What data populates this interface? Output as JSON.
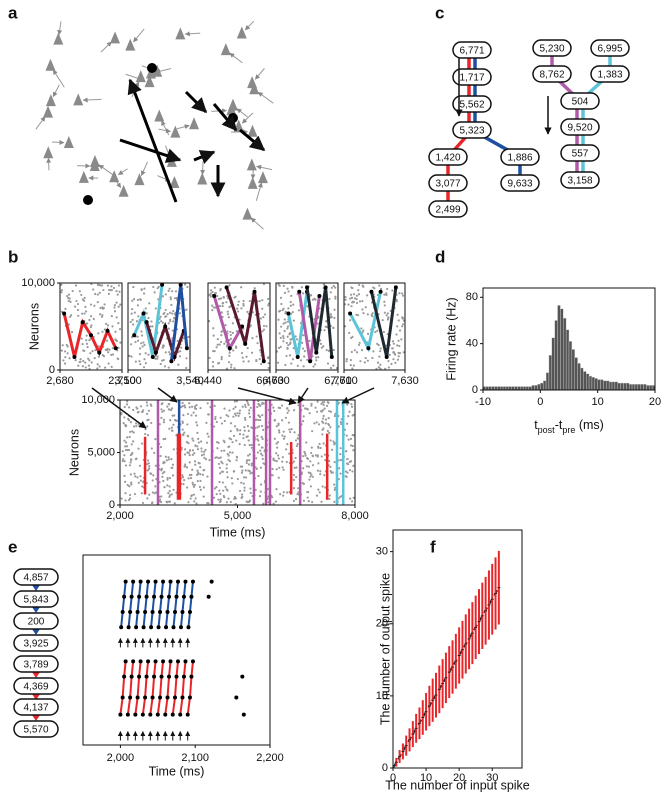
{
  "panel_labels": [
    "a",
    "b",
    "c",
    "d",
    "e",
    "f"
  ],
  "c_chains": {
    "nodes": [
      "6,771",
      "1,717",
      "5,562",
      "5,323",
      "1,420",
      "3,077",
      "2,499",
      "1,886",
      "9,633",
      "5,230",
      "6,995",
      "8,762",
      "1,383",
      "504",
      "9,520",
      "557",
      "3,158"
    ]
  },
  "e_chains": {
    "nodes": [
      "4,857",
      "5,843",
      "200",
      "3,925",
      "3,789",
      "4,369",
      "4,137",
      "5,570"
    ]
  },
  "chart_data": [
    {
      "type": "raster",
      "ylabel": "Neurons",
      "xlim": [
        2680,
        2710
      ],
      "xticks": [
        {
          "value": 2680,
          "label": "2,680"
        },
        {
          "value": 2710,
          "label": "2,710"
        }
      ],
      "ylim": [
        0,
        10000
      ],
      "yticks": [
        {
          "value": 10000,
          "label": "10,000"
        },
        0
      ],
      "series": [
        {
          "color": "#e8262a",
          "x": [
            2682,
            2687,
            2691,
            2695,
            2699,
            2703,
            2707
          ],
          "y": [
            6500,
            1500,
            5500,
            4000,
            2000,
            4500,
            2500
          ]
        }
      ]
    },
    {
      "type": "raster",
      "xlim": [
        3500,
        3540
      ],
      "xticks": [
        {
          "value": 3500,
          "label": "3,500"
        },
        {
          "value": 3540,
          "label": "3,540"
        }
      ],
      "ylim": [
        0,
        10000
      ],
      "series": [
        {
          "color": "#5cc4d8",
          "x": [
            3504,
            3510,
            3516,
            3522
          ],
          "y": [
            4000,
            6500,
            1500,
            9800
          ]
        },
        {
          "color": "#5a1a2e",
          "x": [
            3512,
            3518,
            3524,
            3530,
            3536
          ],
          "y": [
            5500,
            2000,
            5000,
            1500,
            4500
          ]
        },
        {
          "color": "#1f4fa0",
          "x": [
            3528,
            3534,
            3538
          ],
          "y": [
            1000,
            9800,
            2500
          ]
        }
      ]
    },
    {
      "type": "raster",
      "xlim": [
        6440,
        6460
      ],
      "xticks": [
        {
          "value": 6440,
          "label": "6,440"
        },
        {
          "value": 6460,
          "label": "6,460"
        }
      ],
      "ylim": [
        0,
        10000
      ],
      "series": [
        {
          "color": "#b05aa8",
          "x": [
            6442,
            6447,
            6451
          ],
          "y": [
            8500,
            2500,
            5000
          ]
        },
        {
          "color": "#5a1a2e",
          "x": [
            6446,
            6452,
            6455,
            6458
          ],
          "y": [
            9500,
            3000,
            9000,
            1000
          ]
        }
      ]
    },
    {
      "type": "raster",
      "xlim": [
        6730,
        6770
      ],
      "xticks": [
        {
          "value": 6730,
          "label": "6,730"
        },
        {
          "value": 6770,
          "label": "6,770"
        }
      ],
      "ylim": [
        0,
        10000
      ],
      "series": [
        {
          "color": "#5cc4d8",
          "x": [
            6738,
            6744,
            6750
          ],
          "y": [
            6500,
            1500,
            9000
          ]
        },
        {
          "color": "#b05aa8",
          "x": [
            6745,
            6752,
            6758
          ],
          "y": [
            9000,
            1000,
            8500
          ]
        },
        {
          "color": "#1e2a30",
          "x": [
            6750,
            6756,
            6762,
            6766
          ],
          "y": [
            9500,
            2000,
            9500,
            1500
          ]
        }
      ]
    },
    {
      "type": "raster",
      "xlim": [
        7610,
        7630
      ],
      "xticks": [
        {
          "value": 7610,
          "label": "7,610"
        },
        {
          "value": 7630,
          "label": "7,630"
        }
      ],
      "ylim": [
        0,
        10000
      ],
      "series": [
        {
          "color": "#5cc4d8",
          "x": [
            7612,
            7618,
            7622
          ],
          "y": [
            6500,
            2500,
            9000
          ]
        },
        {
          "color": "#1e2a30",
          "x": [
            7619,
            7624,
            7627
          ],
          "y": [
            9000,
            1500,
            9500
          ]
        }
      ]
    },
    {
      "type": "raster",
      "xlabel": "Time (ms)",
      "ylabel": "Neurons",
      "xlim": [
        2000,
        8000
      ],
      "xticks": [
        {
          "value": 2000,
          "label": "2,000"
        },
        {
          "value": 5000,
          "label": "5,000"
        },
        {
          "value": 8000,
          "label": "8,000"
        }
      ],
      "ylim": [
        0,
        10000
      ],
      "yticks": [
        0,
        {
          "value": 5000,
          "label": "5,000"
        },
        {
          "value": 10000,
          "label": "10,000"
        }
      ],
      "series": [
        {
          "color": "#e8262a",
          "x": [
            2640,
            2640
          ],
          "y": [
            1000,
            6500
          ]
        },
        {
          "color": "#b05aa8",
          "x": [
            2970,
            2970
          ],
          "y": [
            0,
            10000
          ]
        },
        {
          "color": "#e8262a",
          "x": [
            3480,
            3480
          ],
          "y": [
            500,
            6800
          ]
        },
        {
          "color": "#e8262a",
          "x": [
            3530,
            3530
          ],
          "y": [
            500,
            6800
          ]
        },
        {
          "color": "#1f4fa0",
          "x": [
            3510,
            3510
          ],
          "y": [
            6800,
            10000
          ]
        },
        {
          "color": "#b05aa8",
          "x": [
            4350,
            4350
          ],
          "y": [
            0,
            10000
          ]
        },
        {
          "color": "#b05aa8",
          "x": [
            5420,
            5420
          ],
          "y": [
            0,
            10000
          ]
        },
        {
          "color": "#b05aa8",
          "x": [
            5730,
            5730
          ],
          "y": [
            0,
            10000
          ]
        },
        {
          "color": "#b05aa8",
          "x": [
            5830,
            5830
          ],
          "y": [
            0,
            10000
          ]
        },
        {
          "color": "#e8262a",
          "x": [
            6370,
            6370
          ],
          "y": [
            1000,
            6000
          ]
        },
        {
          "color": "#b05aa8",
          "x": [
            6600,
            6600
          ],
          "y": [
            0,
            10000
          ]
        },
        {
          "color": "#e8262a",
          "x": [
            7290,
            7290
          ],
          "y": [
            500,
            6800
          ]
        },
        {
          "color": "#5cc4d8",
          "x": [
            7540,
            7540
          ],
          "y": [
            0,
            10000
          ]
        },
        {
          "color": "#5cc4d8",
          "x": [
            7700,
            7700
          ],
          "y": [
            0,
            10000
          ]
        }
      ]
    },
    {
      "type": "histogram",
      "ylabel": "Firing rate (Hz)",
      "xlabel_parts": [
        "t",
        "post",
        "-t",
        "pre",
        " (ms)"
      ],
      "color": "#555555",
      "xlim": [
        -10,
        20
      ],
      "xticks": [
        -10,
        0,
        10,
        20
      ],
      "ylim": [
        0,
        88
      ],
      "yticks": [
        0,
        40,
        80
      ],
      "bins": [
        -10,
        -9.5,
        -9,
        -8.5,
        -8,
        -7.5,
        -7,
        -6.5,
        -6,
        -5.5,
        -5,
        -4.5,
        -4,
        -3.5,
        -3,
        -2.5,
        -2,
        -1.5,
        -1,
        -0.5,
        0,
        0.5,
        1,
        1.5,
        2,
        2.5,
        3,
        3.5,
        4,
        4.5,
        5,
        5.5,
        6,
        6.5,
        7,
        7.5,
        8,
        8.5,
        9,
        9.5,
        10,
        10.5,
        11,
        11.5,
        12,
        12.5,
        13,
        13.5,
        14,
        14.5,
        15,
        15.5,
        16,
        16.5,
        17,
        17.5,
        18,
        18.5,
        19,
        19.5,
        20
      ],
      "values": [
        3,
        3,
        3,
        3,
        3,
        3,
        3,
        3,
        3,
        3,
        3,
        3,
        3,
        3,
        3,
        3,
        3,
        4,
        4,
        5,
        6,
        8,
        15,
        30,
        45,
        60,
        73,
        70,
        62,
        52,
        42,
        35,
        28,
        23,
        19,
        16,
        14,
        12,
        11,
        10,
        9,
        9,
        8,
        8,
        7,
        7,
        7,
        6,
        6,
        6,
        6,
        5,
        5,
        5,
        5,
        5,
        5,
        4,
        4,
        4
      ]
    },
    {
      "type": "spike-raster",
      "xlabel": "Time (ms)",
      "xlim": [
        1950,
        2200
      ],
      "xticks": [
        {
          "value": 2000,
          "label": "2,000"
        },
        {
          "value": 2100,
          "label": "2,100"
        },
        {
          "value": 2200,
          "label": "2,200"
        }
      ],
      "ylim": [
        0,
        10
      ],
      "stimuli": [
        2000,
        2010,
        2020,
        2030,
        2040,
        2050,
        2060,
        2070,
        2080,
        2090
      ],
      "stim_rows": [
        5.4,
        0.5
      ],
      "groups": [
        {
          "color": "#1f4fa0",
          "rows": [
            {
              "y": 6.2,
              "x": [
                2001,
                2011,
                2021,
                2031,
                2041,
                2051,
                2061,
                2071,
                2081,
                2091
              ]
            },
            {
              "y": 7.0,
              "x": [
                2003,
                2013,
                2023,
                2033,
                2043,
                2053,
                2063,
                2073,
                2083,
                2093
              ]
            },
            {
              "y": 7.8,
              "x": [
                2005,
                2015,
                2025,
                2035,
                2045,
                2055,
                2065,
                2075,
                2085,
                2095
              ]
            },
            {
              "y": 8.6,
              "x": [
                2007,
                2017,
                2027,
                2037,
                2047,
                2057,
                2067,
                2077,
                2087,
                2097
              ]
            }
          ]
        },
        {
          "color": "#e8262a",
          "rows": [
            {
              "y": 1.6,
              "x": [
                2000,
                2010,
                2020,
                2030,
                2040,
                2050,
                2060,
                2070,
                2080,
                2090
              ]
            },
            {
              "y": 2.5,
              "x": [
                2003,
                2013,
                2023,
                2033,
                2043,
                2053,
                2063,
                2073,
                2083,
                2093
              ]
            },
            {
              "y": 3.6,
              "x": [
                2005,
                2015,
                2025,
                2035,
                2045,
                2055,
                2065,
                2075,
                2085,
                2095
              ]
            },
            {
              "y": 4.4,
              "x": [
                2007,
                2017,
                2027,
                2037,
                2047,
                2057,
                2067,
                2077,
                2087,
                2097
              ]
            }
          ]
        }
      ],
      "extra": {
        "x": [
          2122,
          2118,
          2163,
          2155,
          2165
        ],
        "y": [
          8.6,
          7.8,
          3.6,
          2.5,
          1.6
        ]
      }
    },
    {
      "type": "errorbar",
      "xlabel": "The number of input spike",
      "ylabel": "The number of output spike",
      "color": "#e8262a",
      "xlim": [
        0,
        39
      ],
      "ylim": [
        0,
        33
      ],
      "xticks": [
        0,
        10,
        20,
        30
      ],
      "yticks": [
        0,
        10,
        20,
        30
      ],
      "x": [
        1,
        2,
        3,
        4,
        5,
        6,
        7,
        8,
        9,
        10,
        11,
        12,
        13,
        14,
        15,
        16,
        17,
        18,
        19,
        20,
        21,
        22,
        23,
        24,
        25,
        26,
        27,
        28,
        29,
        30,
        31,
        32
      ],
      "values": [
        0.8,
        1.6,
        2.3,
        3.1,
        3.9,
        4.7,
        5.5,
        6.2,
        7.0,
        7.8,
        8.6,
        9.4,
        10.1,
        10.9,
        11.7,
        12.5,
        13.3,
        14.0,
        14.8,
        15.6,
        16.4,
        17.2,
        17.9,
        18.7,
        19.5,
        20.3,
        21.1,
        21.8,
        22.6,
        23.4,
        24.2,
        25.0
      ],
      "errors": [
        0.6,
        0.9,
        1.1,
        1.4,
        1.6,
        1.8,
        2.0,
        2.2,
        2.4,
        2.6,
        2.8,
        3.0,
        3.1,
        3.3,
        3.4,
        3.5,
        3.6,
        3.7,
        3.8,
        3.9,
        4.0,
        4.1,
        4.2,
        4.3,
        4.4,
        4.5,
        4.6,
        4.7,
        4.8,
        4.9,
        5.0,
        5.1
      ],
      "fit": {
        "x": [
          0,
          32
        ],
        "y": [
          0,
          25
        ]
      }
    }
  ]
}
